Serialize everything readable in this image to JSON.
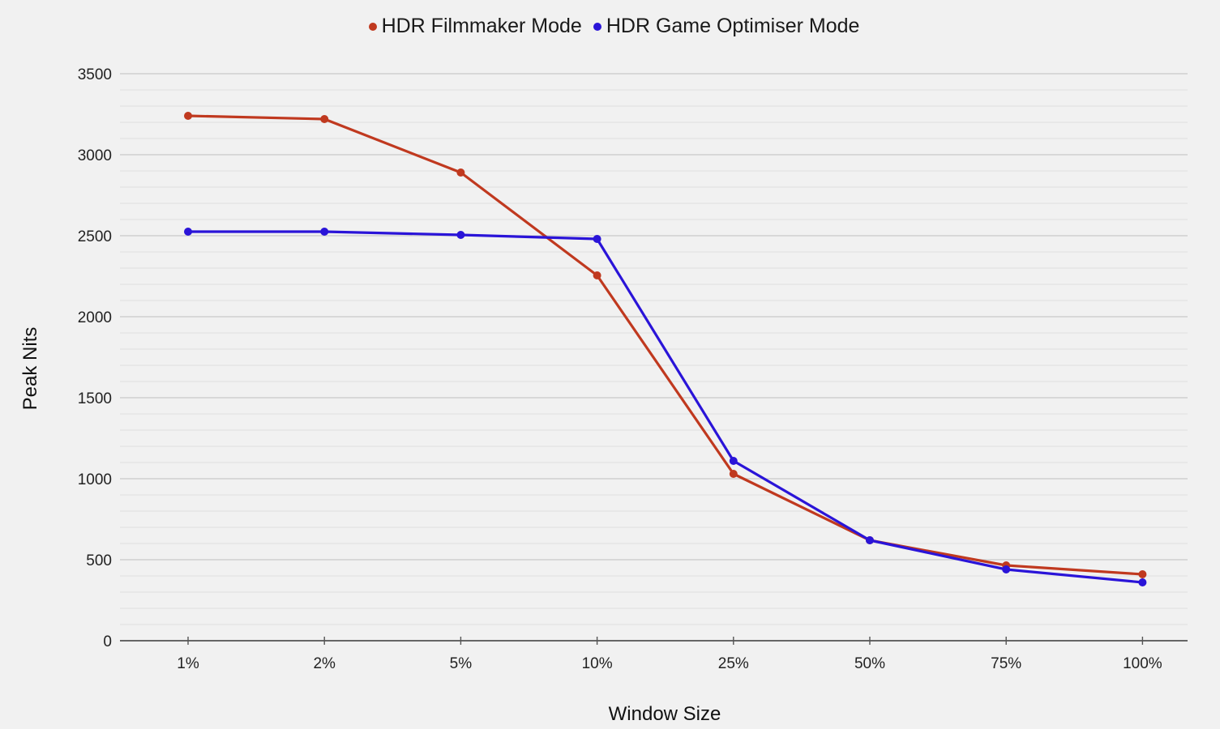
{
  "chart_data": {
    "type": "line",
    "title": "",
    "xlabel": "Window Size",
    "ylabel": "Peak Nits",
    "categories": [
      "1%",
      "2%",
      "5%",
      "10%",
      "25%",
      "50%",
      "75%",
      "100%"
    ],
    "series": [
      {
        "name": "HDR Filmmaker Mode",
        "color": "#c0391f",
        "values": [
          3240,
          3220,
          2890,
          2255,
          1030,
          620,
          465,
          410
        ]
      },
      {
        "name": "HDR Game Optimiser Mode",
        "color": "#2a14d8",
        "values": [
          2525,
          2525,
          2505,
          2480,
          1110,
          620,
          440,
          360
        ]
      }
    ],
    "ylim": [
      0,
      3500
    ],
    "yticks": [
      0,
      500,
      1000,
      1500,
      2000,
      2500,
      3000,
      3500
    ],
    "minor_grid_step": 100,
    "grid": true,
    "legend_position": "top"
  },
  "legend": {
    "items": [
      {
        "label": "HDR Filmmaker Mode",
        "color": "#c0391f"
      },
      {
        "label": "HDR Game Optimiser Mode",
        "color": "#2a14d8"
      }
    ]
  },
  "axes": {
    "x_title": "Window Size",
    "y_title": "Peak Nits"
  }
}
